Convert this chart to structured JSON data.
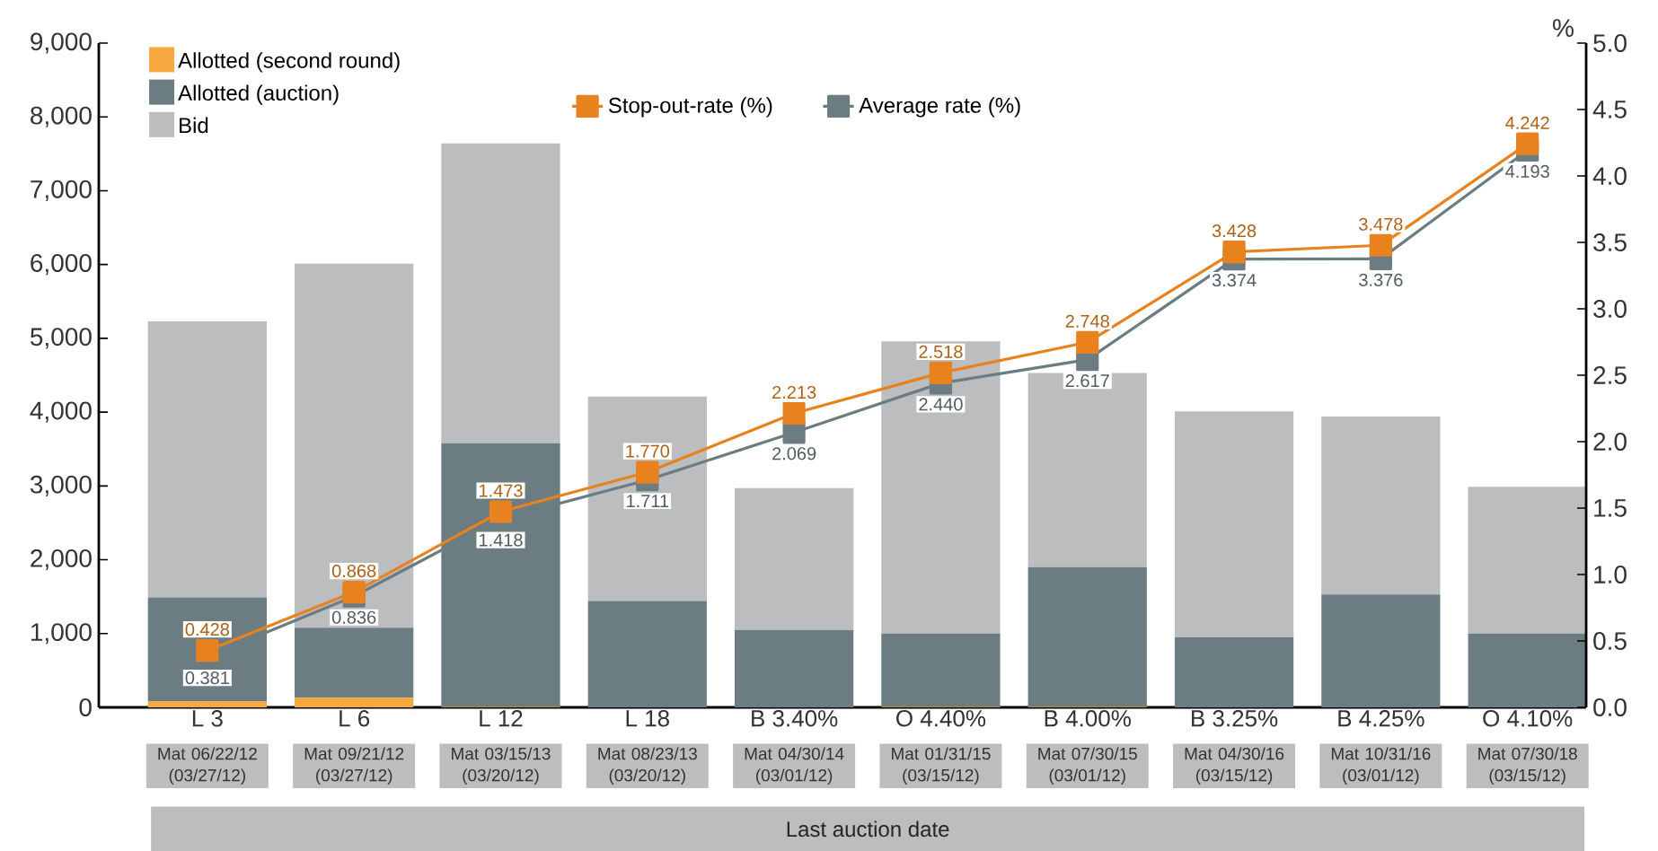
{
  "chart_data": {
    "type": "bar",
    "stacked": true,
    "legend": "top",
    "marker": "square",
    "categories": [
      "L 3",
      "L 6",
      "L 12",
      "L 18",
      "B 3.40%",
      "O 4.40%",
      "B 4.00%",
      "B 3.25%",
      "B 4.25%",
      "O 4.10%"
    ],
    "xlabel": "Last auction date",
    "y2label": "%",
    "annotations": [
      "Mat 06/22/12 (03/27/12)",
      "Mat 09/21/12 (03/27/12)",
      "Mat 03/15/13 (03/20/12)",
      "Mat 08/23/13 (03/20/12)",
      "Mat 04/30/14 (03/01/12)",
      "Mat 01/31/15 (03/15/12)",
      "Mat 07/30/15 (03/01/12)",
      "Mat 04/30/16 (03/15/12)",
      "Mat 10/31/16 (03/01/12)",
      "Mat 07/30/18 (03/15/12)"
    ],
    "ylim": [
      0,
      9000
    ],
    "yticks": [
      0,
      {
        "value": 1000,
        "label": "1,000"
      },
      {
        "value": 2000,
        "label": "2,000"
      },
      {
        "value": 3000,
        "label": "3,000"
      },
      {
        "value": 4000,
        "label": "4,000"
      },
      {
        "value": 5000,
        "label": "5,000"
      },
      {
        "value": 6000,
        "label": "6,000"
      },
      {
        "value": 7000,
        "label": "7,000"
      },
      {
        "value": 8000,
        "label": "8,000"
      },
      {
        "value": 9000,
        "label": "9,000"
      }
    ],
    "y2lim": [
      0,
      5
    ],
    "y2ticks": [
      {
        "value": 0,
        "label": "0.0"
      },
      {
        "value": 0.5,
        "label": "0.5"
      },
      {
        "value": 1,
        "label": "1.0"
      },
      {
        "value": 1.5,
        "label": "1.5"
      },
      {
        "value": 2,
        "label": "2.0"
      },
      {
        "value": 2.5,
        "label": "2.5"
      },
      {
        "value": 3,
        "label": "3.0"
      },
      {
        "value": 3.5,
        "label": "3.5"
      },
      {
        "value": 4,
        "label": "4.0"
      },
      {
        "value": 4.5,
        "label": "4.5"
      },
      {
        "value": 5,
        "label": "5.0"
      }
    ],
    "series": [
      {
        "name": "Allotted (second round)",
        "color": "#f7a940",
        "values": [
          80,
          130,
          10,
          0,
          0,
          10,
          10,
          0,
          0,
          0
        ]
      },
      {
        "name": "Allotted (auction)",
        "color": "#6b7c82",
        "values": [
          1410,
          950,
          3570,
          1440,
          1050,
          990,
          1890,
          950,
          1530,
          1000
        ]
      },
      {
        "name": "Bid",
        "color": "#bcbdbf",
        "values": [
          3740,
          4930,
          4060,
          2770,
          1920,
          3960,
          2630,
          3060,
          2410,
          1990
        ]
      },
      {
        "name": "Stop-out-rate (%)",
        "type": "line",
        "axis": "y2",
        "color": "#e8821e",
        "values": [
          0.428,
          0.868,
          1.473,
          1.77,
          2.213,
          2.518,
          2.748,
          3.428,
          3.478,
          4.242
        ],
        "value_labels": [
          "0.428",
          "0.868",
          "1.473",
          "1.770",
          "2.213",
          "2.518",
          "2.748",
          "3.428",
          "3.478",
          "4.242"
        ]
      },
      {
        "name": "Average rate (%)",
        "type": "line",
        "axis": "y2",
        "color": "#6b7c82",
        "values": [
          0.381,
          0.836,
          1.418,
          1.711,
          2.069,
          2.44,
          2.617,
          3.374,
          3.376,
          4.193
        ],
        "value_labels": [
          "0.381",
          "0.836",
          "1.418",
          "1.711",
          "2.069",
          "2.440",
          "2.617",
          "3.374",
          "3.376",
          "4.193"
        ]
      }
    ]
  }
}
